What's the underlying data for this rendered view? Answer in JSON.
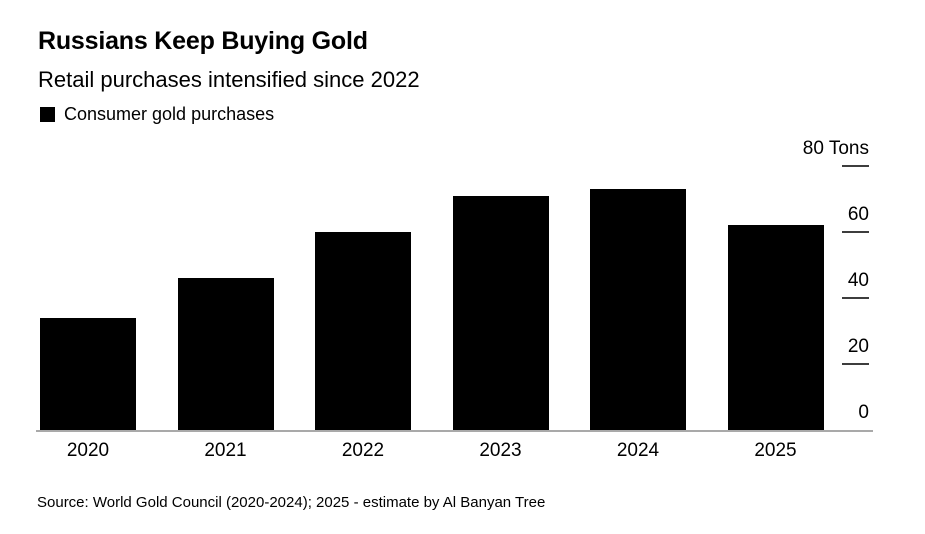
{
  "header": {
    "title": "Russians Keep Buying Gold",
    "subtitle": "Retail purchases intensified since 2022"
  },
  "legend": {
    "label": "Consumer gold purchases",
    "swatch_color": "#000000"
  },
  "footer": {
    "source": "Source: World Gold Council (2020-2024); 2025 - estimate by Al Banyan Tree"
  },
  "chart_data": {
    "type": "bar",
    "title": "Russians Keep Buying Gold",
    "subtitle": "Retail purchases intensified since 2022",
    "legend_entries": [
      "Consumer gold purchases"
    ],
    "categories": [
      "2020",
      "2021",
      "2022",
      "2023",
      "2024",
      "2025"
    ],
    "values": [
      34,
      46,
      60,
      71,
      73,
      62
    ],
    "unit": "Tons",
    "ylabel": "Tons",
    "ylim": [
      0,
      80
    ],
    "yticks": [
      0,
      20,
      40,
      60,
      80
    ],
    "ytick_labels": [
      "0",
      "20",
      "40",
      "60",
      "80 Tons"
    ],
    "axis_side": "right",
    "grid": false,
    "bar_color": "#000000",
    "background_color": "#ffffff",
    "source": "Source: World Gold Council (2020-2024); 2025 - estimate by Al Banyan Tree"
  }
}
